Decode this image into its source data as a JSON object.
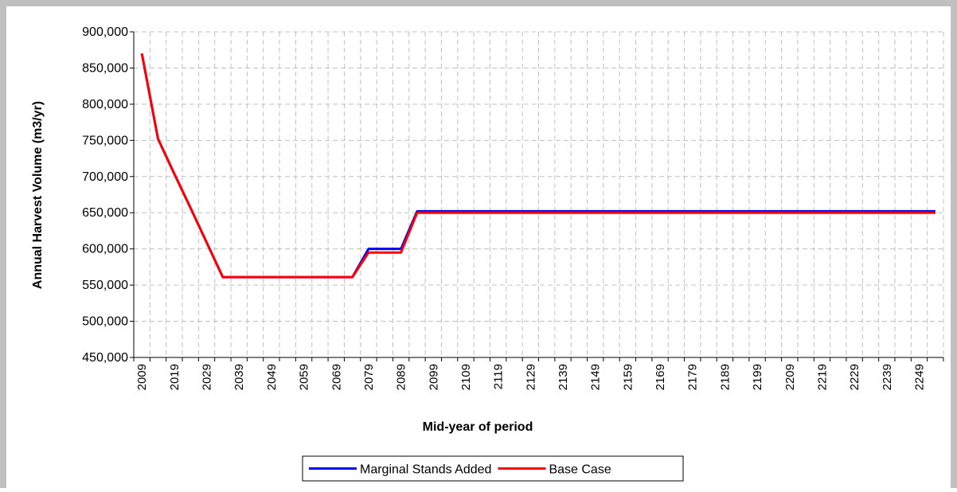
{
  "chart_data": {
    "type": "line",
    "x_label": "Mid-year of period",
    "y_label": "Annual Harvest Volume (m3/yr)",
    "categories": [
      "2009",
      null,
      "2019",
      null,
      "2029",
      null,
      "2039",
      null,
      "2049",
      null,
      "2059",
      null,
      "2069",
      null,
      "2079",
      null,
      "2089",
      null,
      "2099",
      null,
      "2109",
      null,
      "2119",
      null,
      "2129",
      null,
      "2139",
      null,
      "2149",
      null,
      "2159",
      null,
      "2169",
      null,
      "2179",
      null,
      "2189",
      null,
      "2199",
      null,
      "2209",
      null,
      "2219",
      null,
      "2229",
      null,
      "2239",
      null,
      "2249",
      null
    ],
    "series": [
      {
        "name": "Marginal Stands Added",
        "color": "#0000ff",
        "values": [
          870000,
          752000,
          704000,
          657000,
          609000,
          561000,
          561000,
          561000,
          561000,
          561000,
          561000,
          561000,
          561000,
          561000,
          600000,
          600000,
          600000,
          652000,
          652000,
          652000,
          652000,
          652000,
          652000,
          652000,
          652000,
          652000,
          652000,
          652000,
          652000,
          652000,
          652000,
          652000,
          652000,
          652000,
          652000,
          652000,
          652000,
          652000,
          652000,
          652000,
          652000,
          652000,
          652000,
          652000,
          652000,
          652000,
          652000,
          652000,
          652000,
          652000
        ]
      },
      {
        "name": "Base Case",
        "color": "#ff0000",
        "values": [
          870000,
          752000,
          704000,
          657000,
          609000,
          561000,
          561000,
          561000,
          561000,
          561000,
          561000,
          561000,
          561000,
          561000,
          595000,
          595000,
          595000,
          650000,
          650000,
          650000,
          650000,
          650000,
          650000,
          650000,
          650000,
          650000,
          650000,
          650000,
          650000,
          650000,
          650000,
          650000,
          650000,
          650000,
          650000,
          650000,
          650000,
          650000,
          650000,
          650000,
          650000,
          650000,
          650000,
          650000,
          650000,
          650000,
          650000,
          650000,
          650000,
          650000
        ]
      }
    ],
    "ylim": [
      450000,
      900000
    ],
    "yticks": [
      {
        "value": 450000,
        "label": "450,000"
      },
      {
        "value": 500000,
        "label": "500,000"
      },
      {
        "value": 550000,
        "label": "550,000"
      },
      {
        "value": 600000,
        "label": "600,000"
      },
      {
        "value": 650000,
        "label": "650,000"
      },
      {
        "value": 700000,
        "label": "700,000"
      },
      {
        "value": 750000,
        "label": "750,000"
      },
      {
        "value": 800000,
        "label": "800,000"
      },
      {
        "value": 850000,
        "label": "850,000"
      },
      {
        "value": 900000,
        "label": "900,000"
      }
    ],
    "grid": true,
    "legend": "bottom"
  }
}
